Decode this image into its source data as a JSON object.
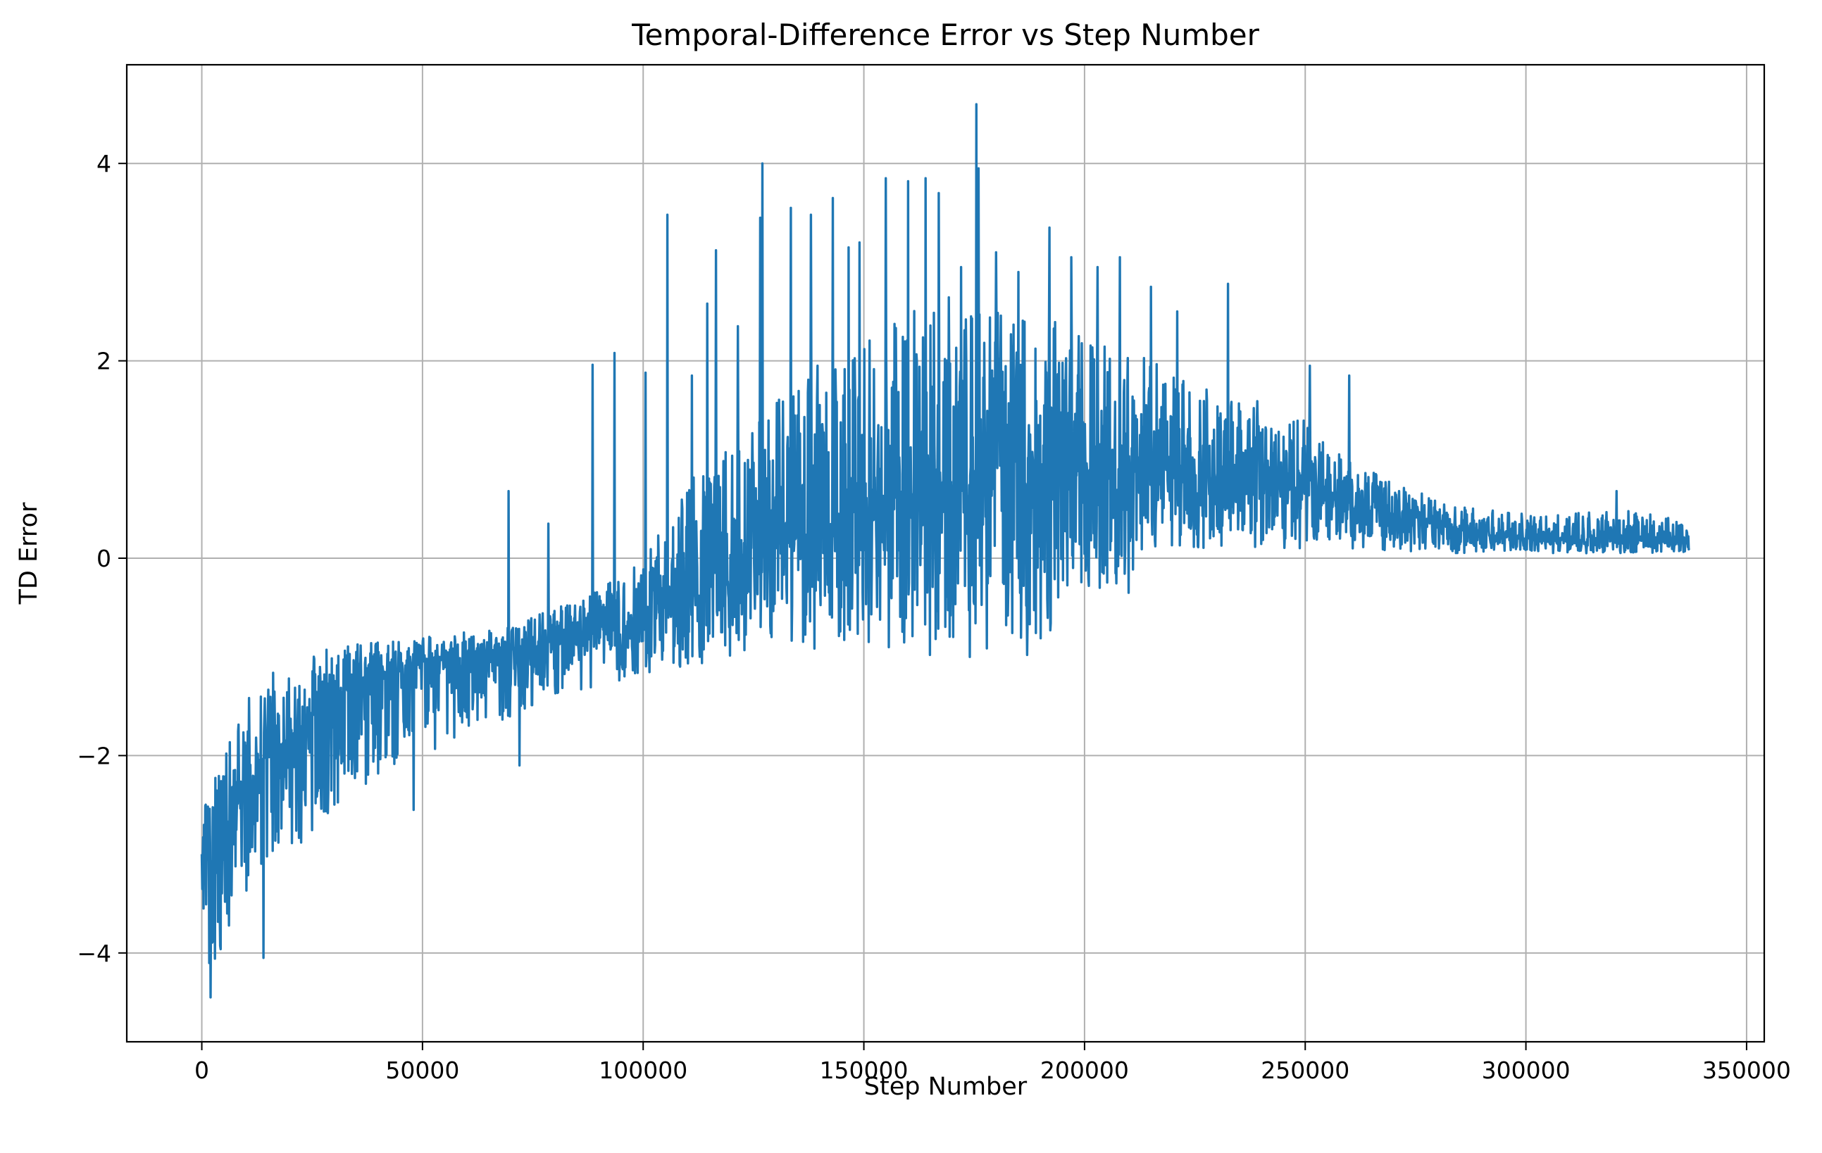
{
  "chart_data": {
    "type": "line",
    "title": "Temporal-Difference Error vs Step Number",
    "xlabel": "Step Number",
    "ylabel": "TD Error",
    "xlim": [
      -17000,
      354000
    ],
    "ylim": [
      -4.9,
      5.0
    ],
    "xticks": [
      0,
      50000,
      100000,
      150000,
      200000,
      250000,
      300000,
      350000
    ],
    "xtick_labels": [
      "0",
      "50000",
      "100000",
      "150000",
      "200000",
      "250000",
      "300000",
      "350000"
    ],
    "yticks": [
      -4,
      -2,
      0,
      2,
      4
    ],
    "ytick_labels": [
      "−4",
      "−2",
      "0",
      "2",
      "4"
    ],
    "grid": true,
    "legend": "none",
    "series": [
      {
        "color": "#1f77b4",
        "x_range": [
          0,
          337000
        ],
        "x": [
          0,
          2500,
          5000,
          10000,
          15000,
          20000,
          25000,
          30000,
          40000,
          50000,
          60000,
          70000,
          80000,
          90000,
          100000,
          110000,
          120000,
          130000,
          140000,
          150000,
          160000,
          170000,
          180000,
          190000,
          200000,
          210000,
          220000,
          230000,
          240000,
          250000,
          260000,
          270000,
          280000,
          290000,
          300000,
          310000,
          320000,
          330000,
          337000
        ],
        "lower": [
          -3.7,
          -4.4,
          -4.0,
          -3.5,
          -3.3,
          -3.0,
          -2.8,
          -2.6,
          -2.2,
          -2.0,
          -1.8,
          -1.6,
          -1.4,
          -1.3,
          -1.2,
          -1.1,
          -1.0,
          -0.95,
          -0.95,
          -0.95,
          -0.95,
          -0.95,
          -0.95,
          -0.9,
          -0.3,
          -0.3,
          0.1,
          0.1,
          0.1,
          0.1,
          0.1,
          0.05,
          0.05,
          0.05,
          0.05,
          0.05,
          0.05,
          0.05,
          0.05
        ],
        "center": [
          -3.0,
          -3.0,
          -2.8,
          -2.3,
          -2.0,
          -1.8,
          -1.6,
          -1.4,
          -1.2,
          -1.05,
          -1.0,
          -0.95,
          -0.85,
          -0.75,
          -0.6,
          -0.4,
          -0.2,
          0.1,
          0.3,
          0.5,
          0.7,
          0.8,
          0.9,
          0.9,
          0.9,
          0.9,
          0.85,
          0.8,
          0.75,
          0.65,
          0.55,
          0.45,
          0.35,
          0.25,
          0.2,
          0.2,
          0.2,
          0.18,
          0.15
        ],
        "upper": [
          -2.6,
          -2.2,
          -1.9,
          -1.4,
          -1.2,
          -1.0,
          -0.95,
          -0.9,
          -0.85,
          -0.8,
          -0.75,
          -0.7,
          -0.5,
          -0.3,
          0.0,
          0.8,
          1.2,
          1.6,
          2.0,
          2.3,
          2.5,
          2.7,
          2.6,
          2.5,
          2.3,
          2.1,
          1.9,
          1.7,
          1.6,
          1.4,
          1.0,
          0.8,
          0.6,
          0.5,
          0.45,
          0.45,
          0.5,
          0.45,
          0.35
        ],
        "spikes": [
          {
            "x": 2000,
            "y": -4.45
          },
          {
            "x": 14000,
            "y": -4.05
          },
          {
            "x": 35000,
            "y": -0.95
          },
          {
            "x": 48000,
            "y": -2.55
          },
          {
            "x": 69500,
            "y": 0.68
          },
          {
            "x": 72000,
            "y": -2.1
          },
          {
            "x": 78500,
            "y": 0.35
          },
          {
            "x": 88500,
            "y": 1.96
          },
          {
            "x": 93500,
            "y": 2.08
          },
          {
            "x": 100500,
            "y": 1.88
          },
          {
            "x": 105500,
            "y": 3.48
          },
          {
            "x": 111000,
            "y": 1.85
          },
          {
            "x": 114500,
            "y": 2.58
          },
          {
            "x": 116500,
            "y": 3.12
          },
          {
            "x": 121500,
            "y": 2.35
          },
          {
            "x": 126500,
            "y": 3.45
          },
          {
            "x": 127000,
            "y": 4.0
          },
          {
            "x": 133500,
            "y": 3.55
          },
          {
            "x": 138000,
            "y": 3.48
          },
          {
            "x": 143000,
            "y": 3.65
          },
          {
            "x": 146500,
            "y": 3.15
          },
          {
            "x": 149000,
            "y": 3.2
          },
          {
            "x": 155000,
            "y": 3.85
          },
          {
            "x": 160000,
            "y": 3.82
          },
          {
            "x": 164000,
            "y": 3.85
          },
          {
            "x": 167000,
            "y": 3.7
          },
          {
            "x": 172000,
            "y": 2.95
          },
          {
            "x": 175500,
            "y": 4.6
          },
          {
            "x": 176000,
            "y": 3.95
          },
          {
            "x": 180000,
            "y": 3.1
          },
          {
            "x": 185000,
            "y": 2.9
          },
          {
            "x": 192000,
            "y": 3.35
          },
          {
            "x": 197000,
            "y": 3.05
          },
          {
            "x": 203000,
            "y": 2.95
          },
          {
            "x": 208000,
            "y": 3.05
          },
          {
            "x": 215000,
            "y": 2.75
          },
          {
            "x": 221000,
            "y": 2.5
          },
          {
            "x": 232500,
            "y": 2.78
          },
          {
            "x": 251000,
            "y": 1.95
          },
          {
            "x": 260000,
            "y": 1.85
          },
          {
            "x": 165000,
            "y": -0.98
          },
          {
            "x": 174000,
            "y": -1.0
          },
          {
            "x": 187000,
            "y": -0.98
          },
          {
            "x": 201000,
            "y": -0.28
          },
          {
            "x": 210000,
            "y": -0.35
          },
          {
            "x": 320500,
            "y": 0.68
          }
        ]
      }
    ]
  }
}
